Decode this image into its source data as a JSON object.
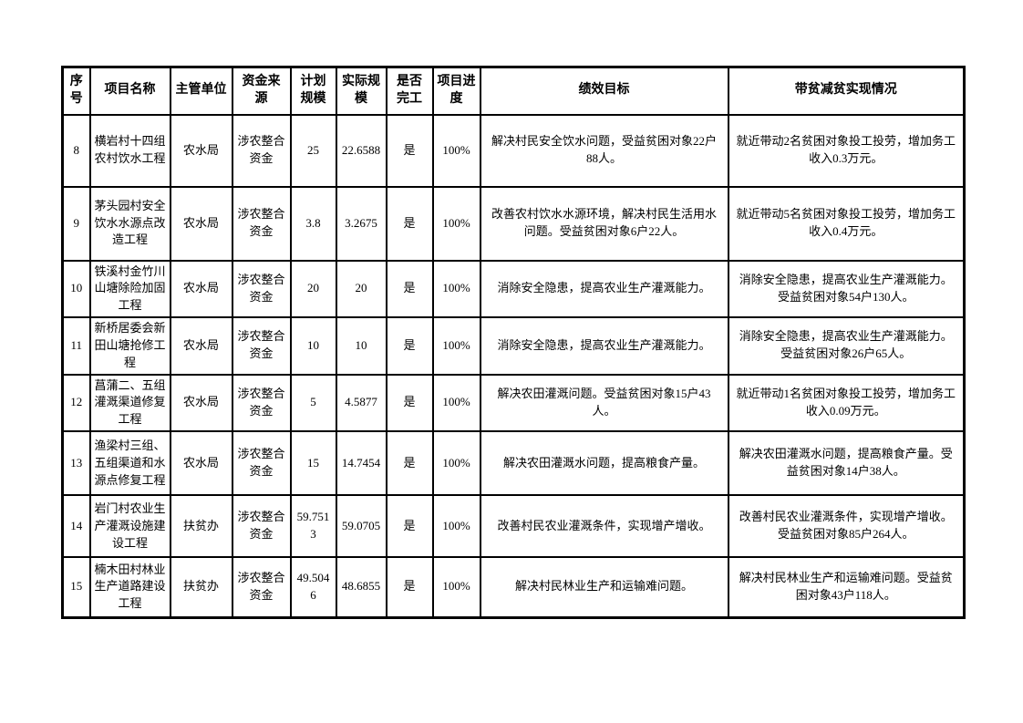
{
  "table": {
    "headers": {
      "no": "序号",
      "name": "项目名称",
      "unit": "主管单位",
      "fund": "资金来源",
      "plan": "计划规模",
      "actual": "实际规模",
      "done": "是否完工",
      "progress": "项目进度",
      "goal": "绩效目标",
      "poverty": "带贫减贫实现情况"
    },
    "rows": [
      {
        "no": "8",
        "name": "横岩村十四组农村饮水工程",
        "unit": "农水局",
        "fund": "涉农整合资金",
        "plan": "25",
        "actual": "22.6588",
        "done": "是",
        "progress": "100%",
        "goal": "解决村民安全饮水问题，受益贫困对象22户88人。",
        "poverty": "就近带动2名贫困对象投工投劳，增加务工收入0.3万元。"
      },
      {
        "no": "9",
        "name": "茅头园村安全饮水水源点改造工程",
        "unit": "农水局",
        "fund": "涉农整合资金",
        "plan": "3.8",
        "actual": "3.2675",
        "done": "是",
        "progress": "100%",
        "goal": "改善农村饮水水源环境，解决村民生活用水问题。受益贫困对象6户22人。",
        "poverty": "就近带动5名贫困对象投工投劳，增加务工收入0.4万元。"
      },
      {
        "no": "10",
        "name": "铁溪村金竹川山塘除险加固工程",
        "unit": "农水局",
        "fund": "涉农整合资金",
        "plan": "20",
        "actual": "20",
        "done": "是",
        "progress": "100%",
        "goal": "消除安全隐患，提高农业生产灌溉能力。",
        "poverty": "消除安全隐患，提高农业生产灌溉能力。受益贫困对象54户130人。"
      },
      {
        "no": "11",
        "name": "新桥居委会新田山塘抢修工程",
        "unit": "农水局",
        "fund": "涉农整合资金",
        "plan": "10",
        "actual": "10",
        "done": "是",
        "progress": "100%",
        "goal": "消除安全隐患，提高农业生产灌溉能力。",
        "poverty": "消除安全隐患，提高农业生产灌溉能力。受益贫困对象26户65人。"
      },
      {
        "no": "12",
        "name": "菖蒲二、五组灌溉渠道修复工程",
        "unit": "农水局",
        "fund": "涉农整合资金",
        "plan": "5",
        "actual": "4.5877",
        "done": "是",
        "progress": "100%",
        "goal": "解决农田灌溉问题。受益贫困对象15户43人。",
        "poverty": "就近带动1名贫困对象投工投劳，增加务工收入0.09万元。"
      },
      {
        "no": "13",
        "name": "渔梁村三组、五组渠道和水源点修复工程",
        "unit": "农水局",
        "fund": "涉农整合资金",
        "plan": "15",
        "actual": "14.7454",
        "done": "是",
        "progress": "100%",
        "goal": "解决农田灌溉水问题，提高粮食产量。",
        "poverty": "解决农田灌溉水问题，提高粮食产量。受益贫困对象14户38人。"
      },
      {
        "no": "14",
        "name": "岩门村农业生产灌溉设施建设工程",
        "unit": "扶贫办",
        "fund": "涉农整合资金",
        "plan": "59.7513",
        "actual": "59.0705",
        "done": "是",
        "progress": "100%",
        "goal": "改善村民农业灌溉条件，实现增产增收。",
        "poverty": "改善村民农业灌溉条件，实现增产增收。受益贫困对象85户264人。"
      },
      {
        "no": "15",
        "name": "楠木田村林业生产道路建设工程",
        "unit": "扶贫办",
        "fund": "涉农整合资金",
        "plan": "49.5046",
        "actual": "48.6855",
        "done": "是",
        "progress": "100%",
        "goal": "解决村民林业生产和运输难问题。",
        "poverty": "解决村民林业生产和运输难问题。受益贫困对象43户118人。"
      }
    ]
  }
}
